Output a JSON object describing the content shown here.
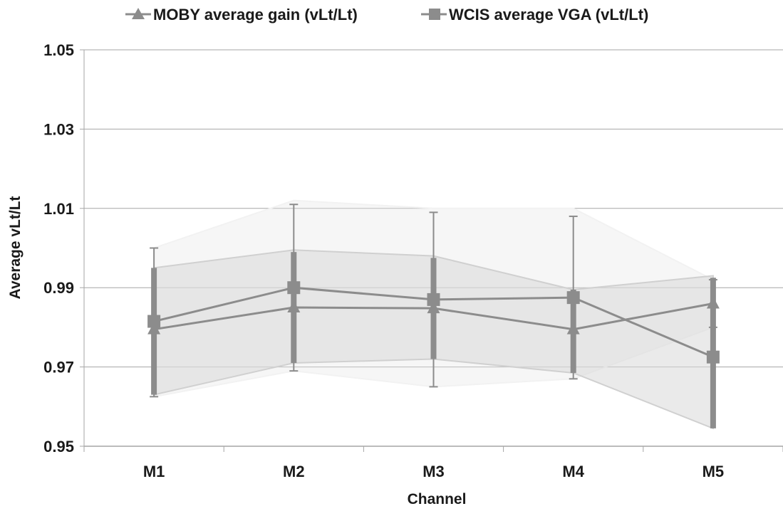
{
  "chart_data": {
    "type": "line",
    "xlabel": "Channel",
    "ylabel": "Average vLt/Lt",
    "categories": [
      "M1",
      "M2",
      "M3",
      "M4",
      "M5"
    ],
    "ylim": [
      0.95,
      1.05
    ],
    "yticks": [
      "1.05",
      "1.03",
      "1.01",
      "0.99",
      "0.97",
      "0.95"
    ],
    "ytick_values": [
      1.05,
      1.03,
      1.01,
      0.99,
      0.97,
      0.95
    ],
    "grid": true,
    "legend_position": "top",
    "series": [
      {
        "name": "MOBY average gain (vLt/Lt)",
        "marker": "triangle",
        "color": "#8c8c8c",
        "values": [
          0.9795,
          0.985,
          0.9848,
          0.9795,
          0.986
        ],
        "error_low": [
          0.9625,
          0.969,
          0.965,
          0.967,
          0.98
        ],
        "error_high": [
          1.0,
          1.011,
          1.009,
          1.008,
          0.992
        ],
        "band_low": [
          0.9625,
          0.969,
          0.965,
          0.967,
          0.98
        ],
        "band_high": [
          1.0,
          1.012,
          1.01,
          1.01,
          0.992
        ]
      },
      {
        "name": "WCIS average VGA (vLt/Lt)",
        "marker": "square",
        "color": "#8c8c8c",
        "values": [
          0.9815,
          0.99,
          0.987,
          0.9875,
          0.9725
        ],
        "error_low": [
          0.963,
          0.971,
          0.972,
          0.9685,
          0.9545
        ],
        "error_high": [
          0.995,
          0.999,
          0.9975,
          0.9895,
          0.9925
        ],
        "band_low": [
          0.963,
          0.971,
          0.972,
          0.9685,
          0.9545
        ],
        "band_high": [
          0.995,
          0.9995,
          0.998,
          0.9895,
          0.993
        ]
      }
    ]
  }
}
